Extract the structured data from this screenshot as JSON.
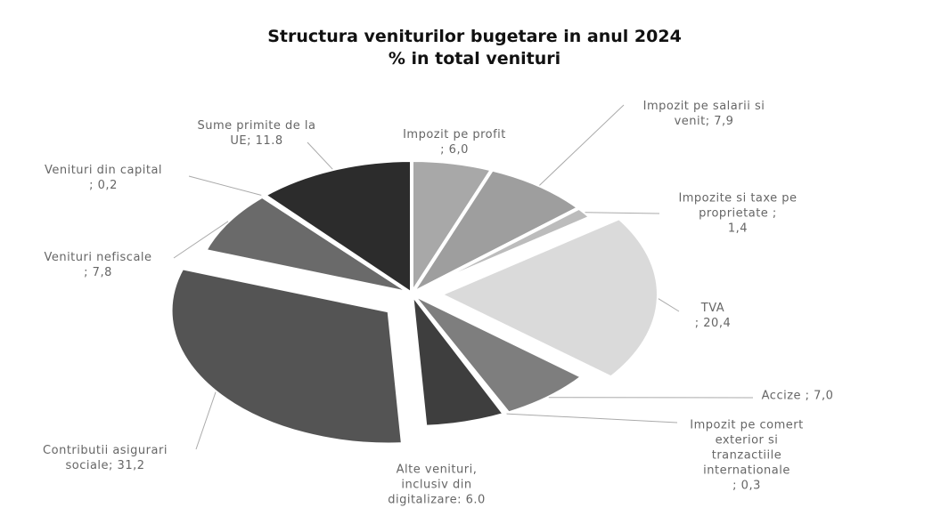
{
  "chart_data": {
    "type": "pie",
    "title": "Structura veniturilor bugetare in anul 2024",
    "subtitle": "% in total venituri",
    "values": [
      6.0,
      7.9,
      1.4,
      20.4,
      7.0,
      0.3,
      6.0,
      31.2,
      7.8,
      0.2,
      11.8
    ],
    "value_labels": [
      "Impozit pe profit\n; 6,0",
      "Impozit pe salarii si\nvenit; 7,9",
      "Impozite si taxe pe\nproprietate        ;\n1,4",
      "TVA\n; 20,4",
      "Accize  ; 7,0",
      "Impozit pe comert\nexterior si\ntranzactiile\ninternationale\n; 0,3",
      "Alte venituri,\ninclusiv din\ndigitalizare: 6.0",
      "Contributii asigurari\nsociale; 31,2",
      "Venituri nefiscale\n; 7,8",
      "Venituri din capital\n; 0,2",
      "Sume primite de la\nUE; 11.8"
    ],
    "colors": [
      "#a8a8a8",
      "#9e9e9e",
      "#bcbcbc",
      "#dadada",
      "#7e7e7e",
      "#979797",
      "#3e3e3e",
      "#545454",
      "#6a6a6a",
      "#8a8a8a",
      "#2c2c2c"
    ],
    "exploded": [
      false,
      false,
      false,
      true,
      false,
      false,
      false,
      true,
      false,
      false,
      false
    ]
  }
}
